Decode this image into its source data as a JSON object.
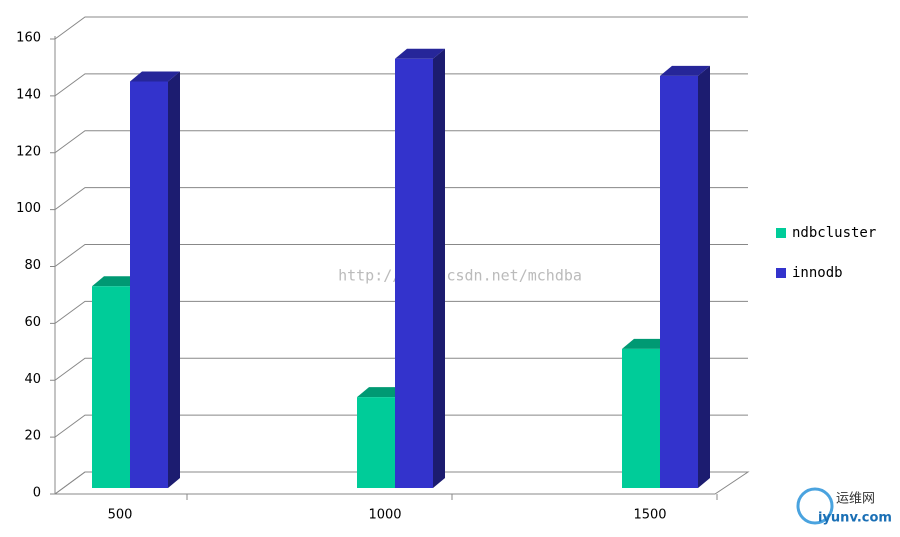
{
  "chart_data": {
    "type": "bar3d",
    "categories": [
      "500",
      "1000",
      "1500"
    ],
    "series": [
      {
        "name": "ndbcluster",
        "color": "#00cc99",
        "values": [
          72,
          33,
          50
        ]
      },
      {
        "name": "innodb",
        "color": "#3333cc",
        "values": [
          144,
          152,
          146
        ]
      }
    ],
    "ylim": [
      0,
      160
    ],
    "yticks": [
      0,
      20,
      40,
      60,
      80,
      100,
      120,
      140,
      160
    ],
    "grid": true,
    "legend": "right",
    "watermark": "http://blog.csdn.net/mchdba",
    "logo": {
      "name": "运维网",
      "site": "iyunv.com"
    }
  }
}
